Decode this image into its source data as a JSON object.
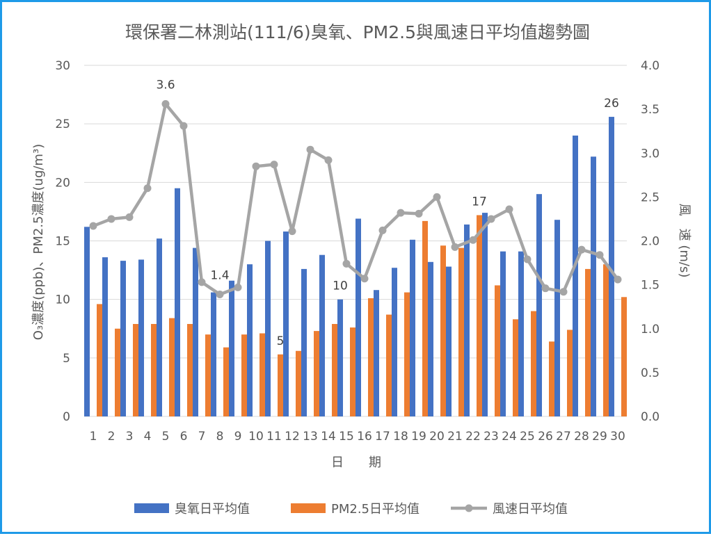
{
  "chart_data": {
    "type": "bar",
    "title": "環保署二林測站(111/6)臭氧、PM2.5與風速日平均值趨勢圖",
    "xlabel": "日　　期",
    "ylabel_left": "O₃濃度(ppb)、PM2.5濃度(ug/m³)",
    "ylabel_right": "風　速 (m/s)",
    "ylim_left": [
      0,
      30
    ],
    "ylim_right": [
      0.0,
      4.0
    ],
    "yticks_left": [
      "0",
      "5",
      "10",
      "15",
      "20",
      "25",
      "30"
    ],
    "yticks_right": [
      "0.0",
      "0.5",
      "1.0",
      "1.5",
      "2.0",
      "2.5",
      "3.0",
      "3.5",
      "4.0"
    ],
    "categories": [
      "1",
      "2",
      "3",
      "4",
      "5",
      "6",
      "7",
      "8",
      "9",
      "10",
      "11",
      "12",
      "13",
      "14",
      "15",
      "16",
      "17",
      "18",
      "19",
      "20",
      "21",
      "22",
      "23",
      "24",
      "25",
      "26",
      "27",
      "28",
      "29",
      "30"
    ],
    "grid": true,
    "legend_position": "bottom",
    "series": [
      {
        "name": "臭氧日平均值",
        "type": "bar",
        "axis": "left",
        "color": "#4472c4",
        "values": [
          16.2,
          13.6,
          13.3,
          13.4,
          15.2,
          19.5,
          14.4,
          10.6,
          11.6,
          13.0,
          15.0,
          15.8,
          12.6,
          13.8,
          10.0,
          16.9,
          10.8,
          12.7,
          15.1,
          13.2,
          12.8,
          16.4,
          17.4,
          14.1,
          14.1,
          19.0,
          16.8,
          24.0,
          22.2,
          25.6
        ]
      },
      {
        "name": "PM2.5日平均值",
        "type": "bar",
        "axis": "left",
        "color": "#ed7d31",
        "values": [
          9.6,
          7.5,
          7.9,
          7.9,
          8.4,
          7.9,
          7.0,
          5.9,
          7.0,
          7.1,
          5.3,
          5.6,
          7.3,
          7.9,
          7.6,
          10.1,
          8.7,
          10.6,
          16.7,
          14.6,
          14.4,
          17.2,
          11.2,
          8.3,
          9.0,
          6.4,
          7.4,
          12.6,
          13.0,
          10.2
        ]
      },
      {
        "name": "風速日平均值",
        "type": "line",
        "axis": "right",
        "color": "#a5a5a5",
        "values": [
          2.17,
          2.25,
          2.27,
          2.6,
          3.56,
          3.31,
          1.53,
          1.39,
          1.47,
          2.85,
          2.87,
          2.11,
          3.04,
          2.92,
          1.74,
          1.57,
          2.12,
          2.32,
          2.31,
          2.5,
          1.93,
          2.01,
          2.25,
          2.36,
          1.79,
          1.46,
          1.42,
          1.9,
          1.84,
          1.56
        ]
      }
    ],
    "annotations": [
      {
        "text": "3.6",
        "series": 2,
        "index": 4
      },
      {
        "text": "1.4",
        "series": 2,
        "index": 7
      },
      {
        "text": "5",
        "series": 1,
        "index": 10
      },
      {
        "text": "10",
        "series": 0,
        "index": 14
      },
      {
        "text": "17",
        "series": 1,
        "index": 21
      },
      {
        "text": "26",
        "series": 0,
        "index": 29
      }
    ]
  }
}
